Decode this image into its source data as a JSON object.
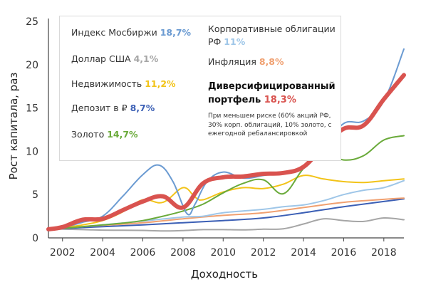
{
  "chart_data": {
    "type": "line",
    "ylabel": "Рост капитала, раз",
    "xlabel": "Доходность",
    "xlim": [
      2001.3,
      2019.0
    ],
    "ylim": [
      0,
      25
    ],
    "x_ticks": [
      "2002",
      "2004",
      "2006",
      "2008",
      "2010",
      "2012",
      "2014",
      "2016",
      "2018"
    ],
    "y_ticks": [
      "0",
      "5",
      "10",
      "15",
      "20",
      "25"
    ],
    "grid": false,
    "legend_placement": "top-left, inside boxed area",
    "legend": [
      {
        "label": "Индекс Мосбиржи",
        "value": "18,7%",
        "color": "#6b9bd2"
      },
      {
        "label": "Доллар США",
        "value": "4,1%",
        "color": "#a6a6a6"
      },
      {
        "label": "Недвижимость",
        "value": "11,2%",
        "color": "#f2c318"
      },
      {
        "label": "Депозит в ₽",
        "value": "8,7%",
        "color": "#3b5fb5"
      },
      {
        "label": "Золото",
        "value": "14,7%",
        "color": "#6aaa3a"
      },
      {
        "label": "Корпоративные облигации РФ",
        "value": "11%",
        "color": "#9ec6e8"
      },
      {
        "label": "Инфляция",
        "value": "8,8%",
        "color": "#f0a070"
      }
    ],
    "highlight": {
      "label": "Диверсифицированный портфель",
      "value": "18,3%",
      "color": "#d9534f",
      "note": "При меньшем риске (60% акций РФ, 30% корп. облигаций, 10% золото, с ежегодной ребалансировкой"
    },
    "series": [
      {
        "name": "Доллар США",
        "color": "#a6a6a6",
        "width": 2,
        "x": [
          2001.3,
          2002,
          2003,
          2004,
          2005,
          2006,
          2007,
          2008,
          2009,
          2010,
          2011,
          2012,
          2013,
          2014,
          2015,
          2016,
          2017,
          2018,
          2019
        ],
        "y": [
          1.0,
          1.0,
          0.95,
          0.9,
          0.88,
          0.86,
          0.8,
          0.85,
          0.95,
          0.95,
          0.93,
          1.0,
          1.05,
          1.6,
          2.2,
          2.0,
          1.9,
          2.3,
          2.1
        ]
      },
      {
        "name": "Депозит в ₽",
        "color": "#3b5fb5",
        "width": 2,
        "x": [
          2001.3,
          2002,
          2004,
          2006,
          2008,
          2010,
          2012,
          2014,
          2016,
          2018,
          2019
        ],
        "y": [
          1.0,
          1.08,
          1.3,
          1.5,
          1.75,
          2.0,
          2.3,
          2.9,
          3.6,
          4.2,
          4.5
        ]
      },
      {
        "name": "Инфляция",
        "color": "#f0a070",
        "width": 2,
        "x": [
          2001.3,
          2002,
          2004,
          2006,
          2008,
          2010,
          2012,
          2014,
          2016,
          2018,
          2019
        ],
        "y": [
          1.0,
          1.15,
          1.45,
          1.75,
          2.2,
          2.6,
          2.9,
          3.5,
          4.1,
          4.45,
          4.6
        ]
      },
      {
        "name": "Корпоративные облигации РФ",
        "color": "#9ec6e8",
        "width": 2,
        "x": [
          2001.3,
          2002,
          2004,
          2006,
          2008,
          2009,
          2010,
          2012,
          2013,
          2014,
          2015,
          2016,
          2017,
          2018,
          2019
        ],
        "y": [
          1.0,
          1.12,
          1.5,
          1.95,
          2.4,
          2.5,
          2.9,
          3.3,
          3.6,
          3.8,
          4.3,
          5.0,
          5.5,
          5.8,
          6.6
        ]
      },
      {
        "name": "Недвижимость",
        "color": "#f2c318",
        "width": 2,
        "x": [
          2001.3,
          2002,
          2003,
          2004,
          2005,
          2006,
          2007,
          2008,
          2008.6,
          2009,
          2010,
          2011,
          2012,
          2013,
          2014,
          2015,
          2016,
          2017,
          2018,
          2019
        ],
        "y": [
          1.0,
          1.2,
          1.5,
          2.0,
          3.0,
          4.4,
          4.1,
          5.8,
          4.7,
          4.4,
          5.3,
          5.8,
          5.7,
          6.2,
          7.2,
          6.8,
          6.5,
          6.4,
          6.6,
          6.8
        ]
      },
      {
        "name": "Золото",
        "color": "#6aaa3a",
        "width": 2,
        "x": [
          2001.3,
          2002,
          2003,
          2004,
          2005,
          2006,
          2007,
          2008,
          2009,
          2010,
          2011,
          2012,
          2013,
          2014,
          2015,
          2016,
          2017,
          2018,
          2019
        ],
        "y": [
          1.0,
          1.1,
          1.3,
          1.5,
          1.7,
          2.0,
          2.5,
          3.1,
          3.9,
          5.2,
          6.3,
          6.7,
          5.1,
          8.0,
          9.9,
          9.0,
          9.5,
          11.3,
          11.8
        ]
      },
      {
        "name": "Индекс Мосбиржи",
        "color": "#6b9bd2",
        "width": 2,
        "x": [
          2001.3,
          2002,
          2003,
          2004,
          2005,
          2006,
          2006.8,
          2007.5,
          2008.2,
          2008.6,
          2009.2,
          2010,
          2011,
          2012,
          2013,
          2014,
          2015,
          2016,
          2017,
          2018,
          2019
        ],
        "y": [
          1.0,
          1.2,
          1.8,
          2.5,
          4.8,
          7.3,
          8.4,
          6.5,
          2.8,
          3.9,
          6.5,
          7.6,
          6.9,
          7.2,
          7.6,
          8.0,
          10.5,
          13.2,
          13.5,
          15.8,
          21.8
        ]
      },
      {
        "name": "Диверсифицированный портфель",
        "color": "#d9534f",
        "width": 6,
        "x": [
          2001.3,
          2002,
          2003,
          2004,
          2005,
          2006,
          2007,
          2008,
          2009,
          2010,
          2011,
          2012,
          2013,
          2014,
          2015,
          2016,
          2017,
          2018,
          2019
        ],
        "y": [
          1.0,
          1.25,
          2.1,
          2.2,
          3.2,
          4.2,
          4.8,
          3.5,
          6.3,
          7.0,
          7.1,
          7.4,
          7.5,
          8.2,
          10.6,
          12.6,
          13.0,
          16.0,
          18.8
        ]
      }
    ]
  }
}
